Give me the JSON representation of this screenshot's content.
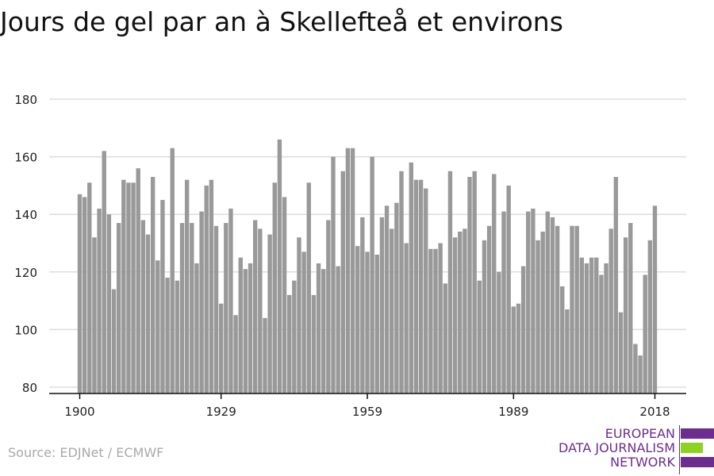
{
  "title": "Jours de gel par an à Skellefteå et environs",
  "source": "Source: EDJNet / ECMWF",
  "logo": {
    "lines": [
      "EUROPEAN",
      "DATA JOURNALISM",
      "NETWORK"
    ],
    "colors": {
      "purple": "#6b2d8e",
      "green": "#8cd21e"
    }
  },
  "colors": {
    "bar": "#999999",
    "grid": "#dddddd",
    "axis": "#111111",
    "text": "#222222"
  },
  "chart_data": {
    "type": "bar",
    "x_start": 1900,
    "x_end": 2018,
    "xticks": [
      1900,
      1929,
      1959,
      1989,
      2018
    ],
    "yticks": [
      80,
      100,
      120,
      140,
      160,
      180
    ],
    "ylim": [
      80,
      180
    ],
    "grid": true,
    "values": [
      147,
      146,
      151,
      132,
      142,
      162,
      140,
      114,
      137,
      152,
      151,
      151,
      156,
      138,
      133,
      153,
      124,
      145,
      118,
      163,
      117,
      137,
      152,
      137,
      123,
      141,
      150,
      152,
      136,
      109,
      137,
      142,
      105,
      125,
      121,
      123,
      138,
      135,
      104,
      133,
      151,
      166,
      146,
      112,
      117,
      132,
      127,
      151,
      112,
      123,
      121,
      138,
      160,
      122,
      155,
      163,
      163,
      129,
      139,
      127,
      160,
      126,
      139,
      143,
      135,
      144,
      155,
      130,
      158,
      152,
      152,
      149,
      128,
      128,
      130,
      116,
      155,
      132,
      134,
      135,
      153,
      155,
      117,
      131,
      136,
      154,
      120,
      141,
      150,
      108,
      109,
      122,
      141,
      142,
      131,
      134,
      141,
      139,
      136,
      115,
      107,
      136,
      136,
      125,
      123,
      125,
      125,
      119,
      123,
      135,
      153,
      106,
      132,
      137,
      95,
      91,
      119,
      131,
      143
    ]
  }
}
